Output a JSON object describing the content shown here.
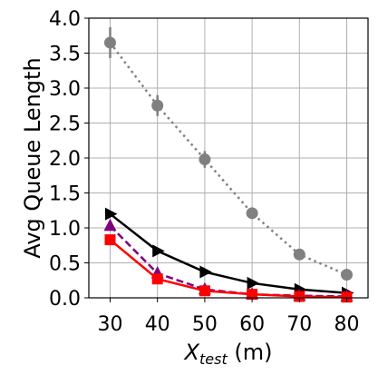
{
  "chart_data": {
    "type": "line",
    "title": "",
    "xlabel_main": "X",
    "xlabel_sub": "test",
    "xlabel_unit": " (m)",
    "ylabel": "Avg Queue Length",
    "x": [
      30,
      40,
      50,
      60,
      70,
      80
    ],
    "xticks": [
      "30",
      "40",
      "50",
      "60",
      "70",
      "80"
    ],
    "yticks": [
      "0.0",
      "0.5",
      "1.0",
      "1.5",
      "2.0",
      "2.5",
      "3.0",
      "3.5",
      "4.0"
    ],
    "xlim": [
      25.5,
      84.5
    ],
    "ylim": [
      0,
      4.0
    ],
    "grid": true,
    "series": [
      {
        "values": [
          3.65,
          2.75,
          1.98,
          1.21,
          0.62,
          0.33
        ],
        "errors": [
          0.22,
          0.15,
          0.12,
          0.06,
          0.05,
          0.04
        ],
        "color": "#808080",
        "linestyle": "dotted",
        "marker": "circle"
      },
      {
        "values": [
          1.2,
          0.67,
          0.37,
          0.21,
          0.12,
          0.07
        ],
        "color": "#000000",
        "linestyle": "solid",
        "marker": "triangle-right"
      },
      {
        "values": [
          1.03,
          0.35,
          0.12,
          0.05,
          0.03,
          0.02
        ],
        "color": "#800080",
        "linestyle": "dashed",
        "marker": "triangle-up"
      },
      {
        "values": [
          0.83,
          0.27,
          0.1,
          0.05,
          0.02,
          0.01
        ],
        "color": "#ff0000",
        "linestyle": "solid",
        "marker": "square"
      }
    ]
  }
}
